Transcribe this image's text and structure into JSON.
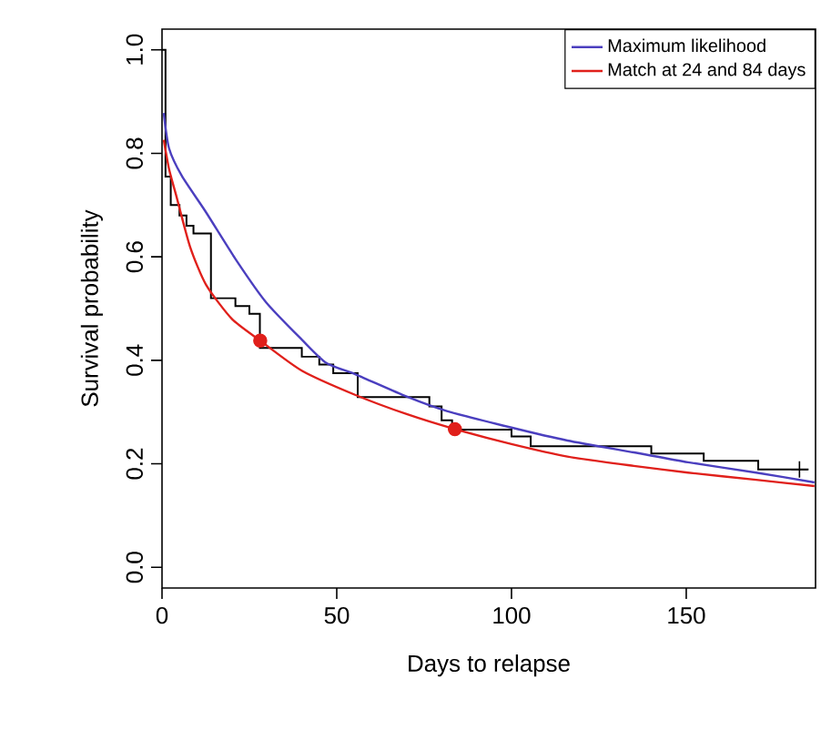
{
  "chart_data": {
    "type": "line",
    "xlabel": "Days to relapse",
    "ylabel": "Survival probability",
    "xlim": [
      0,
      187
    ],
    "ylim": [
      -0.04,
      1.04
    ],
    "xticks": [
      0,
      50,
      100,
      150
    ],
    "yticks": [
      {
        "value": 0,
        "label": "0.0"
      },
      0.2,
      0.4,
      0.6,
      0.8,
      {
        "value": 1,
        "label": "1.0"
      }
    ],
    "legend": "top right",
    "grid": false,
    "series": [
      {
        "type": "step",
        "color": "#000000",
        "x": [
          0,
          1,
          2.5,
          5,
          7,
          9,
          14,
          21,
          25,
          28,
          40,
          45,
          49,
          56,
          76.5,
          80,
          83,
          100,
          105.5,
          140,
          155,
          170.6,
          185
        ],
        "values": [
          1.0,
          0.755,
          0.7,
          0.68,
          0.66,
          0.645,
          0.52,
          0.505,
          0.49,
          0.424,
          0.407,
          0.392,
          0.375,
          0.329,
          0.311,
          0.284,
          0.266,
          0.253,
          0.234,
          0.22,
          0.206,
          0.189,
          0.189
        ]
      },
      {
        "type": "scatter",
        "marker": "cross",
        "color": "#000000",
        "x": [
          182.4
        ],
        "values": [
          0.189
        ]
      },
      {
        "name": "Maximum likelihood",
        "color": "#4b3fbf",
        "x": [
          0.5,
          2,
          5.7,
          12.6,
          21.2,
          29.8,
          40,
          47,
          55.7,
          70,
          81.5,
          100,
          116,
          135,
          150.5,
          170,
          186.7
        ],
        "values": [
          0.878,
          0.81,
          0.756,
          0.686,
          0.594,
          0.512,
          0.44,
          0.395,
          0.372,
          0.33,
          0.302,
          0.27,
          0.245,
          0.222,
          0.203,
          0.183,
          0.164
        ]
      },
      {
        "name": "Match at 24 and 84 days",
        "color": "#e0201b",
        "x": [
          0.5,
          2,
          4,
          8,
          12.6,
          20,
          28.1,
          40,
          55.7,
          70,
          83.8,
          100,
          116,
          135,
          150.5,
          170,
          186.7
        ],
        "values": [
          0.826,
          0.77,
          0.72,
          0.62,
          0.546,
          0.48,
          0.438,
          0.38,
          0.332,
          0.296,
          0.267,
          0.238,
          0.214,
          0.196,
          0.183,
          0.169,
          0.157
        ]
      },
      {
        "type": "scatter",
        "marker": "circle",
        "color": "#e0201b",
        "x": [
          28.1,
          83.8
        ],
        "values": [
          0.438,
          0.267
        ]
      }
    ]
  }
}
